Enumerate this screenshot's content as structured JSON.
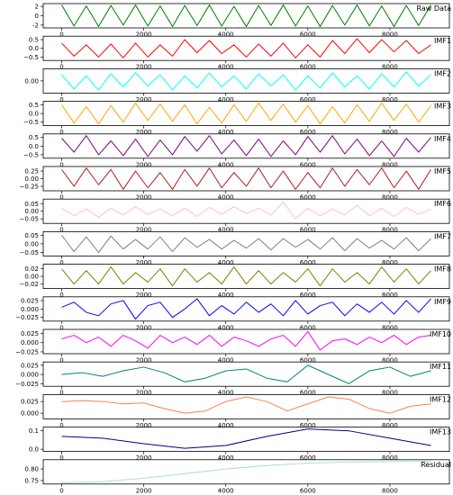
{
  "chart_data": [
    {
      "type": "line",
      "title": "Raw Data",
      "color": "#008000",
      "xlim": [
        -450,
        9450
      ],
      "xticks": [
        0,
        2000,
        4000,
        6000,
        8000
      ],
      "ylim": [
        -2.6,
        2.6
      ],
      "yticks": [
        -2,
        0,
        2
      ],
      "x": [
        0,
        300,
        600,
        900,
        1200,
        1500,
        1800,
        2100,
        2400,
        2700,
        3000,
        3300,
        3600,
        3900,
        4200,
        4500,
        4800,
        5100,
        5400,
        5700,
        6000,
        6300,
        6600,
        6900,
        7200,
        7500,
        7800,
        8100,
        8400,
        8700,
        9000
      ],
      "values": [
        2.3,
        -2.2,
        2.1,
        -2.3,
        2.2,
        -2.0,
        2.3,
        -2.2,
        2.1,
        -2.3,
        2.2,
        -2.1,
        2.3,
        -2.2,
        2.0,
        -2.3,
        2.2,
        -2.1,
        2.3,
        -2.2,
        2.1,
        -2.3,
        2.2,
        -2.0,
        2.3,
        -2.2,
        2.1,
        -2.3,
        2.2,
        -2.1,
        2.3
      ]
    },
    {
      "type": "line",
      "title": "IMF1",
      "color": "#ff0000",
      "xlim": [
        -450,
        9450
      ],
      "xticks": [
        0,
        2000,
        4000,
        6000,
        8000
      ],
      "ylim": [
        -0.7,
        0.7
      ],
      "yticks": [
        {
          "value": -0.5,
          "label": "−0.5"
        },
        {
          "value": 0,
          "label": "0.0"
        },
        0.5
      ],
      "x": [
        0,
        300,
        600,
        900,
        1200,
        1500,
        1800,
        2100,
        2400,
        2700,
        3000,
        3300,
        3600,
        3900,
        4200,
        4500,
        4800,
        5100,
        5400,
        5700,
        6000,
        6300,
        6600,
        6900,
        7200,
        7500,
        7800,
        8100,
        8400,
        8700,
        9000
      ],
      "values": [
        0.3,
        -0.45,
        0.2,
        -0.5,
        0.25,
        -0.55,
        0.3,
        -0.5,
        0.2,
        -0.45,
        0.5,
        -0.25,
        0.45,
        -0.3,
        0.2,
        -0.5,
        0.25,
        -0.45,
        0.3,
        -0.55,
        0.2,
        -0.5,
        0.45,
        -0.3,
        0.55,
        -0.25,
        0.5,
        -0.2,
        0.45,
        -0.3,
        0.2
      ]
    },
    {
      "type": "line",
      "title": "IMF2",
      "color": "#00ffff",
      "xlim": [
        -450,
        9450
      ],
      "xticks": [
        0,
        2000,
        4000,
        6000,
        8000
      ],
      "ylim": [
        -0.12,
        0.12
      ],
      "yticks": [
        {
          "value": 0,
          "label": "0.00"
        }
      ],
      "x": [
        0,
        300,
        600,
        900,
        1200,
        1500,
        1800,
        2100,
        2400,
        2700,
        3000,
        3300,
        3600,
        3900,
        4200,
        4500,
        4800,
        5100,
        5400,
        5700,
        6000,
        6300,
        6600,
        6900,
        7200,
        7500,
        7800,
        8100,
        8400,
        8700,
        9000
      ],
      "values": [
        0.06,
        -0.08,
        0.05,
        -0.09,
        0.07,
        -0.06,
        0.08,
        -0.05,
        0.06,
        -0.09,
        0.05,
        -0.07,
        0.08,
        -0.06,
        0.05,
        -0.08,
        0.07,
        -0.05,
        0.06,
        -0.09,
        0.05,
        -0.07,
        0.08,
        -0.06,
        0.05,
        -0.08,
        0.07,
        -0.06,
        0.09,
        -0.05,
        0.06
      ]
    },
    {
      "type": "line",
      "title": "IMF3",
      "color": "#ffa500",
      "xlim": [
        -450,
        9450
      ],
      "xticks": [
        0,
        2000,
        4000,
        6000,
        8000
      ],
      "ylim": [
        -0.7,
        0.7
      ],
      "yticks": [
        {
          "value": -0.5,
          "label": "−0.5"
        },
        {
          "value": 0,
          "label": "0.0"
        },
        0.5
      ],
      "x": [
        0,
        300,
        600,
        900,
        1200,
        1500,
        1800,
        2100,
        2400,
        2700,
        3000,
        3300,
        3600,
        3900,
        4200,
        4500,
        4800,
        5100,
        5400,
        5700,
        6000,
        6300,
        6600,
        6900,
        7200,
        7500,
        7800,
        8100,
        8400,
        8700,
        9000
      ],
      "values": [
        0.5,
        -0.55,
        0.4,
        -0.6,
        0.45,
        -0.5,
        0.6,
        -0.4,
        0.55,
        -0.45,
        0.5,
        -0.6,
        0.35,
        -0.55,
        0.5,
        -0.45,
        0.6,
        -0.4,
        0.55,
        -0.5,
        0.45,
        -0.6,
        0.4,
        -0.55,
        0.5,
        -0.45,
        0.6,
        -0.4,
        0.55,
        -0.5,
        0.45
      ]
    },
    {
      "type": "line",
      "title": "IMF4",
      "color": "#800080",
      "xlim": [
        -450,
        9450
      ],
      "xticks": [
        0,
        2000,
        4000,
        6000,
        8000
      ],
      "ylim": [
        -0.7,
        0.7
      ],
      "yticks": [
        {
          "value": -0.5,
          "label": "−0.5"
        },
        {
          "value": 0,
          "label": "0.0"
        },
        0.5
      ],
      "x": [
        0,
        300,
        600,
        900,
        1200,
        1500,
        1800,
        2100,
        2400,
        2700,
        3000,
        3300,
        3600,
        3900,
        4200,
        4500,
        4800,
        5100,
        5400,
        5700,
        6000,
        6300,
        6600,
        6900,
        7200,
        7500,
        7800,
        8100,
        8400,
        8700,
        9000
      ],
      "values": [
        0.45,
        -0.35,
        0.6,
        -0.5,
        0.3,
        -0.55,
        0.4,
        -0.6,
        0.35,
        -0.5,
        0.55,
        -0.3,
        0.6,
        -0.45,
        0.35,
        -0.55,
        0.4,
        -0.6,
        0.3,
        -0.5,
        0.55,
        -0.35,
        0.6,
        -0.45,
        0.4,
        -0.55,
        0.3,
        -0.6,
        0.45,
        -0.35,
        0.5
      ]
    },
    {
      "type": "line",
      "title": "IMF5",
      "color": "#b22222",
      "xlim": [
        -450,
        9450
      ],
      "xticks": [
        0,
        2000,
        4000,
        6000,
        8000
      ],
      "ylim": [
        -0.4,
        0.4
      ],
      "yticks": [
        {
          "value": -0.25,
          "label": "−0.25"
        },
        {
          "value": 0,
          "label": "0.00"
        },
        0.25
      ],
      "x": [
        0,
        300,
        600,
        900,
        1200,
        1500,
        1800,
        2100,
        2400,
        2700,
        3000,
        3300,
        3600,
        3900,
        4200,
        4500,
        4800,
        5100,
        5400,
        5700,
        6000,
        6300,
        6600,
        6900,
        7200,
        7500,
        7800,
        8100,
        8400,
        8700,
        9000
      ],
      "values": [
        0.3,
        -0.25,
        0.35,
        -0.2,
        0.3,
        -0.35,
        0.25,
        -0.3,
        0.2,
        -0.35,
        0.3,
        -0.25,
        0.35,
        -0.3,
        0.2,
        -0.25,
        0.35,
        -0.3,
        0.25,
        -0.35,
        0.2,
        -0.3,
        0.35,
        -0.25,
        0.3,
        -0.2,
        0.35,
        -0.3,
        0.25,
        -0.35,
        0.3
      ]
    },
    {
      "type": "line",
      "title": "IMF6",
      "color": "#ffc0cb",
      "xlim": [
        -450,
        9450
      ],
      "xticks": [
        0,
        2000,
        4000,
        6000,
        8000
      ],
      "ylim": [
        -0.08,
        0.08
      ],
      "yticks": [
        {
          "value": -0.05,
          "label": "−0.05"
        },
        {
          "value": 0,
          "label": "0.00"
        },
        0.05
      ],
      "x": [
        0,
        300,
        600,
        900,
        1200,
        1500,
        1800,
        2100,
        2400,
        2700,
        3000,
        3300,
        3600,
        3900,
        4200,
        4500,
        4800,
        5100,
        5400,
        5700,
        6000,
        6300,
        6600,
        6900,
        7200,
        7500,
        7800,
        8100,
        8400,
        8700,
        9000
      ],
      "values": [
        0.02,
        -0.03,
        0.015,
        -0.04,
        0.02,
        -0.025,
        0.03,
        -0.02,
        0.015,
        -0.03,
        0.02,
        -0.035,
        0.025,
        -0.02,
        0.03,
        -0.015,
        0.02,
        -0.025,
        0.06,
        -0.05,
        0.02,
        -0.03,
        0.015,
        -0.025,
        0.04,
        -0.03,
        0.02,
        -0.035,
        0.025,
        -0.02,
        0.015
      ]
    },
    {
      "type": "line",
      "title": "IMF7",
      "color": "#808080",
      "xlim": [
        -450,
        9450
      ],
      "xticks": [
        0,
        2000,
        4000,
        6000,
        8000
      ],
      "ylim": [
        -0.07,
        0.07
      ],
      "yticks": [
        {
          "value": -0.05,
          "label": "−0.05"
        },
        {
          "value": 0,
          "label": "0.00"
        },
        0.05
      ],
      "x": [
        0,
        300,
        600,
        900,
        1200,
        1500,
        1800,
        2100,
        2400,
        2700,
        3000,
        3300,
        3600,
        3900,
        4200,
        4500,
        4800,
        5100,
        5400,
        5700,
        6000,
        6300,
        6600,
        6900,
        7200,
        7500,
        7800,
        8100,
        8400,
        8700,
        9000
      ],
      "values": [
        0.05,
        -0.045,
        0.04,
        -0.05,
        0.045,
        -0.03,
        0.025,
        -0.03,
        0.04,
        -0.045,
        0.035,
        -0.02,
        0.025,
        -0.03,
        0.02,
        -0.025,
        0.03,
        -0.035,
        0.03,
        -0.02,
        0.025,
        -0.03,
        0.035,
        -0.04,
        0.03,
        -0.025,
        0.02,
        -0.03,
        0.035,
        -0.04,
        0.03
      ]
    },
    {
      "type": "line",
      "title": "IMF8",
      "color": "#808000",
      "xlim": [
        -450,
        9450
      ],
      "xticks": [
        0,
        2000,
        4000,
        6000,
        8000
      ],
      "ylim": [
        -0.032,
        0.032
      ],
      "yticks": [
        {
          "value": -0.02,
          "label": "−0.02"
        },
        {
          "value": 0,
          "label": "0.00"
        },
        0.02
      ],
      "x": [
        0,
        300,
        600,
        900,
        1200,
        1500,
        1800,
        2100,
        2400,
        2700,
        3000,
        3300,
        3600,
        3900,
        4200,
        4500,
        4800,
        5100,
        5400,
        5700,
        6000,
        6300,
        6600,
        6900,
        7200,
        7500,
        7800,
        8100,
        8400,
        8700,
        9000
      ],
      "values": [
        0.02,
        -0.02,
        0.015,
        -0.02,
        0.025,
        -0.02,
        0.01,
        -0.015,
        0.02,
        -0.025,
        0.02,
        -0.015,
        0.01,
        -0.02,
        0.025,
        -0.02,
        0.015,
        -0.02,
        0.01,
        -0.015,
        0.02,
        -0.025,
        0.02,
        -0.015,
        0.01,
        -0.02,
        0.025,
        -0.015,
        0.02,
        -0.02,
        0.015
      ]
    },
    {
      "type": "line",
      "title": "IMF9",
      "color": "#0000ff",
      "xlim": [
        -450,
        9450
      ],
      "xticks": [
        0,
        2000,
        4000,
        6000,
        8000
      ],
      "ylim": [
        -0.036,
        0.036
      ],
      "yticks": [
        {
          "value": -0.025,
          "label": "−0.025"
        },
        {
          "value": 0,
          "label": "0.000"
        },
        0.025
      ],
      "x": [
        0,
        300,
        600,
        900,
        1200,
        1500,
        1800,
        2100,
        2400,
        2700,
        3000,
        3300,
        3600,
        3900,
        4200,
        4500,
        4800,
        5100,
        5400,
        5700,
        6000,
        6300,
        6600,
        6900,
        7200,
        7500,
        7800,
        8100,
        8400,
        8700,
        9000
      ],
      "values": [
        0.005,
        0.02,
        -0.01,
        -0.02,
        0.015,
        0.025,
        -0.03,
        0.01,
        0.02,
        -0.025,
        0,
        0.03,
        -0.02,
        0.01,
        -0.015,
        0.02,
        -0.01,
        0.015,
        -0.02,
        0.025,
        -0.015,
        0.01,
        0.02,
        -0.02,
        0.015,
        -0.01,
        0.02,
        -0.015,
        0.025,
        -0.01,
        0.03
      ]
    },
    {
      "type": "line",
      "title": "IMF10",
      "color": "#ff00ff",
      "xlim": [
        -450,
        9450
      ],
      "xticks": [
        0,
        2000,
        4000,
        6000,
        8000
      ],
      "ylim": [
        -0.03,
        0.036
      ],
      "yticks": [
        {
          "value": -0.025,
          "label": "−0.025"
        },
        {
          "value": 0,
          "label": "0.000"
        },
        0.025
      ],
      "x": [
        0,
        300,
        600,
        900,
        1200,
        1500,
        1800,
        2100,
        2400,
        2700,
        3000,
        3300,
        3600,
        3900,
        4200,
        4500,
        4800,
        5100,
        5400,
        5700,
        6000,
        6300,
        6600,
        6900,
        7200,
        7500,
        7800,
        8100,
        8400,
        8700,
        9000
      ],
      "values": [
        0.01,
        0.02,
        0,
        0.015,
        -0.01,
        0.02,
        0.005,
        -0.015,
        0.02,
        0,
        0.015,
        -0.005,
        0.02,
        -0.01,
        0.015,
        0.005,
        -0.01,
        0.01,
        0.02,
        -0.01,
        0.03,
        -0.02,
        0.005,
        0.01,
        -0.005,
        0.015,
        0,
        0.02,
        -0.005,
        0.015,
        0.02
      ]
    },
    {
      "type": "line",
      "title": "IMF11",
      "color": "#008080",
      "xlim": [
        -450,
        9450
      ],
      "xticks": [
        0,
        2000,
        4000,
        6000,
        8000
      ],
      "ylim": [
        -0.032,
        0.034
      ],
      "yticks": [
        {
          "value": -0.025,
          "label": "−0.025"
        },
        {
          "value": 0,
          "label": "0.000"
        },
        0.025
      ],
      "x": [
        0,
        500,
        1000,
        1500,
        2000,
        2500,
        3000,
        3500,
        4000,
        4500,
        5000,
        5500,
        6000,
        6500,
        7000,
        7500,
        8000,
        8500,
        9000
      ],
      "values": [
        0,
        0.005,
        -0.005,
        0.01,
        0.02,
        0.005,
        -0.02,
        -0.01,
        0.01,
        0.015,
        -0.01,
        -0.02,
        0.025,
        0,
        -0.025,
        0.01,
        0.02,
        -0.005,
        0.01
      ]
    },
    {
      "type": "line",
      "title": "IMF12",
      "color": "#ff7f50",
      "xlim": [
        -450,
        9450
      ],
      "xticks": [
        0,
        2000,
        4000,
        6000,
        8000
      ],
      "ylim": [
        -0.012,
        0.04
      ],
      "yticks": [
        {
          "value": 0,
          "label": "0.000"
        },
        0.025
      ],
      "x": [
        0,
        500,
        1000,
        1500,
        2000,
        2500,
        3000,
        3500,
        4000,
        4500,
        5000,
        5500,
        6000,
        6500,
        7000,
        7500,
        8000,
        8500,
        9000
      ],
      "values": [
        0.025,
        0.027,
        0.025,
        0.02,
        0.022,
        0.01,
        0,
        0.005,
        0.025,
        0.035,
        0.025,
        0.005,
        0.02,
        0.035,
        0.03,
        0.01,
        0,
        0.015,
        0.02
      ]
    },
    {
      "type": "line",
      "title": "IMF13",
      "color": "#000080",
      "xlim": [
        -450,
        9450
      ],
      "xticks": [
        0,
        2000,
        4000,
        6000,
        8000
      ],
      "ylim": [
        -0.012,
        0.12
      ],
      "yticks": [
        {
          "value": 0,
          "label": "0.0"
        },
        0.1
      ],
      "x": [
        0,
        1000,
        2000,
        3000,
        4000,
        5000,
        6000,
        7000,
        8000,
        9000
      ],
      "values": [
        0.07,
        0.06,
        0.03,
        0.005,
        0.02,
        0.07,
        0.11,
        0.1,
        0.06,
        0.02
      ]
    },
    {
      "type": "line",
      "title": "Residual",
      "color": "#add8e6",
      "xlim": [
        -450,
        9450
      ],
      "xticks": [
        0,
        2000,
        4000,
        6000,
        8000
      ],
      "ylim": [
        0.735,
        0.84
      ],
      "yticks": [
        0.75,
        {
          "value": 0.8,
          "label": "0.80"
        }
      ],
      "x": [
        0,
        1000,
        2000,
        3000,
        4000,
        5000,
        6000,
        7000,
        8000,
        9000
      ],
      "values": [
        0.74,
        0.745,
        0.76,
        0.78,
        0.8,
        0.815,
        0.825,
        0.83,
        0.832,
        0.833
      ]
    }
  ]
}
